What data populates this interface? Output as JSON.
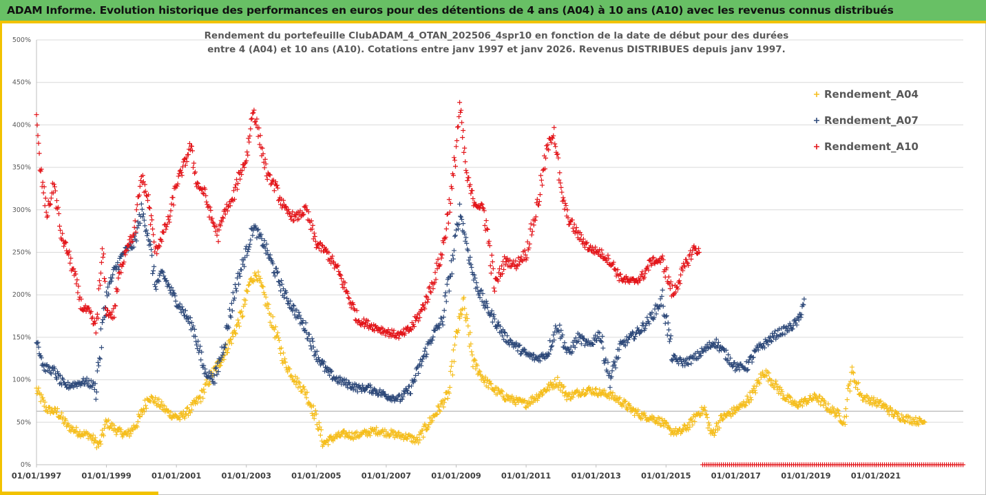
{
  "header": {
    "title": "ADAM Informe. Evolution historique des performances en euros pour des détentions de 4 ans (A04) à 10 ans (A10) avec les revenus connus distribués"
  },
  "colors": {
    "header_bg": "#68c065",
    "accent": "#f2c200",
    "A04": "#f5be1e",
    "A07": "#2f4a7a",
    "A10": "#e3161b",
    "grid": "#d9d9d9"
  },
  "chart_data": {
    "type": "scatter",
    "marker": "plus",
    "title_lines": [
      "Rendement du portefeuille ClubADAM_4_OTAN_202506_4spr10  en fonction de la date de début pour des durées",
      "entre 4 (A04) et 10 ans (A10). Cotations entre janv 1997 et janv 2026. Revenus DISTRIBUES depuis janv 1997."
    ],
    "xlabel": "",
    "ylabel": "",
    "x_ticks": [
      "01/01/1997",
      "01/01/1999",
      "01/01/2001",
      "01/01/2003",
      "01/01/2005",
      "01/01/2007",
      "01/01/2009",
      "01/01/2011",
      "01/01/2013",
      "01/01/2015",
      "01/01/2017",
      "01/01/2019",
      "01/01/2021"
    ],
    "y_ticks": [
      "0%",
      "50%",
      "100%",
      "150%",
      "200%",
      "250%",
      "300%",
      "350%",
      "400%",
      "450%",
      "500%"
    ],
    "xlim": [
      1997.0,
      2023.5
    ],
    "ylim": [
      0,
      500
    ],
    "grid": "horizontal",
    "legend_position": "right",
    "series": [
      {
        "name": "Rendement_A04",
        "x": [
          1997.0,
          1997.3,
          1997.6,
          1997.9,
          1998.2,
          1998.5,
          1998.8,
          1999.0,
          1999.3,
          1999.6,
          1999.9,
          2000.2,
          2000.5,
          2000.8,
          2001.1,
          2001.4,
          2001.7,
          2002.0,
          2002.3,
          2002.6,
          2002.9,
          2003.1,
          2003.3,
          2003.5,
          2003.8,
          2004.1,
          2004.4,
          2004.7,
          2005.0,
          2005.2,
          2005.5,
          2005.8,
          2006.1,
          2006.4,
          2006.7,
          2007.0,
          2007.3,
          2007.6,
          2007.9,
          2008.2,
          2008.5,
          2008.8,
          2009.0,
          2009.2,
          2009.5,
          2009.8,
          2010.1,
          2010.4,
          2010.7,
          2011.0,
          2011.3,
          2011.6,
          2011.9,
          2012.2,
          2012.5,
          2012.8,
          2013.1,
          2013.4,
          2013.7,
          2014.0,
          2014.3,
          2014.6,
          2014.9,
          2015.1,
          2015.4,
          2015.7,
          2015.9,
          2016.1,
          2016.3,
          2016.6,
          2016.9,
          2017.2,
          2017.5,
          2017.8,
          2018.1,
          2018.4,
          2018.7,
          2019.0,
          2019.3,
          2019.6,
          2019.9,
          2020.1,
          2020.3,
          2020.6,
          2020.9,
          2021.2,
          2021.5,
          2021.8,
          2022.1,
          2022.4
        ],
        "y": [
          88,
          65,
          62,
          45,
          38,
          35,
          22,
          50,
          40,
          35,
          50,
          80,
          72,
          60,
          55,
          65,
          80,
          105,
          125,
          150,
          180,
          215,
          225,
          200,
          160,
          120,
          100,
          85,
          55,
          25,
          32,
          36,
          34,
          37,
          40,
          38,
          35,
          33,
          28,
          48,
          65,
          85,
          150,
          190,
          120,
          100,
          88,
          80,
          75,
          72,
          80,
          90,
          98,
          80,
          85,
          88,
          85,
          82,
          75,
          65,
          58,
          55,
          50,
          40,
          38,
          48,
          60,
          65,
          35,
          55,
          62,
          70,
          85,
          110,
          95,
          80,
          70,
          75,
          80,
          68,
          60,
          50,
          110,
          80,
          75,
          70,
          60,
          55,
          52,
          50
        ]
      },
      {
        "name": "Rendement_A07",
        "x": [
          1997.0,
          1997.2,
          1997.5,
          1997.8,
          1998.1,
          1998.4,
          1998.7,
          1999.0,
          1999.2,
          1999.5,
          1999.8,
          2000.0,
          2000.2,
          2000.4,
          2000.6,
          2000.9,
          2001.2,
          2001.5,
          2001.8,
          2002.1,
          2002.4,
          2002.7,
          2003.0,
          2003.2,
          2003.5,
          2003.8,
          2004.1,
          2004.4,
          2004.7,
          2005.0,
          2005.3,
          2005.6,
          2005.9,
          2006.2,
          2006.5,
          2006.8,
          2007.1,
          2007.4,
          2007.7,
          2008.0,
          2008.3,
          2008.6,
          2008.9,
          2009.1,
          2009.3,
          2009.5,
          2009.8,
          2010.1,
          2010.4,
          2010.7,
          2011.0,
          2011.3,
          2011.6,
          2011.9,
          2012.2,
          2012.5,
          2012.8,
          2013.1,
          2013.4,
          2013.7,
          2014.0,
          2014.3,
          2014.6,
          2014.9,
          2015.2,
          2015.5,
          2015.8,
          2016.1,
          2016.4,
          2016.7,
          2017.0,
          2017.3,
          2017.6,
          2017.9,
          2018.2,
          2018.5,
          2018.8,
          2018.95
        ],
        "y": [
          152,
          115,
          110,
          92,
          95,
          98,
          92,
          200,
          225,
          250,
          260,
          300,
          270,
          210,
          225,
          200,
          180,
          160,
          110,
          100,
          150,
          210,
          250,
          280,
          260,
          230,
          200,
          180,
          160,
          130,
          110,
          100,
          95,
          90,
          90,
          85,
          80,
          78,
          90,
          120,
          150,
          170,
          240,
          300,
          260,
          220,
          190,
          170,
          150,
          140,
          130,
          125,
          130,
          165,
          130,
          150,
          140,
          155,
          100,
          140,
          150,
          160,
          175,
          195,
          125,
          120,
          125,
          135,
          145,
          130,
          115,
          115,
          135,
          145,
          155,
          160,
          170,
          195
        ]
      },
      {
        "name": "Rendement_A10",
        "x": [
          1997.0,
          1997.1,
          1997.3,
          1997.5,
          1997.7,
          1997.9,
          1998.1,
          1998.3,
          1998.5,
          1998.7,
          1998.9,
          1999.0,
          1999.2,
          1999.4,
          1999.6,
          1999.8,
          2000.0,
          2000.2,
          2000.4,
          2000.6,
          2000.8,
          2001.0,
          2001.2,
          2001.4,
          2001.6,
          2001.8,
          2002.0,
          2002.2,
          2002.4,
          2002.6,
          2002.8,
          2003.0,
          2003.2,
          2003.4,
          2003.6,
          2003.8,
          2004.1,
          2004.4,
          2004.7,
          2005.0,
          2005.3,
          2005.6,
          2005.9,
          2006.2,
          2006.5,
          2006.8,
          2007.1,
          2007.4,
          2007.7,
          2008.0,
          2008.3,
          2008.6,
          2008.9,
          2009.1,
          2009.3,
          2009.5,
          2009.8,
          2010.1,
          2010.4,
          2010.7,
          2011.0,
          2011.3,
          2011.6,
          2011.8,
          2012.0,
          2012.2,
          2012.5,
          2012.8,
          2013.1,
          2013.4,
          2013.7,
          2014.0,
          2014.3,
          2014.6,
          2014.9,
          2015.2,
          2015.5,
          2015.8,
          2015.95
        ],
        "y": [
          405,
          350,
          295,
          330,
          270,
          250,
          220,
          185,
          180,
          160,
          250,
          180,
          175,
          230,
          260,
          270,
          340,
          310,
          250,
          270,
          290,
          330,
          350,
          375,
          330,
          320,
          290,
          270,
          300,
          310,
          340,
          360,
          420,
          380,
          340,
          330,
          300,
          290,
          300,
          260,
          250,
          230,
          200,
          170,
          165,
          160,
          155,
          152,
          160,
          180,
          210,
          250,
          330,
          420,
          340,
          310,
          300,
          210,
          240,
          235,
          250,
          300,
          370,
          395,
          320,
          290,
          270,
          255,
          250,
          240,
          220,
          215,
          220,
          240,
          240,
          200,
          230,
          255,
          250
        ]
      },
      {
        "name": "",
        "x": [
          2016.05,
          2023.5
        ],
        "y": [
          0,
          0
        ],
        "dense_band": true
      }
    ]
  }
}
